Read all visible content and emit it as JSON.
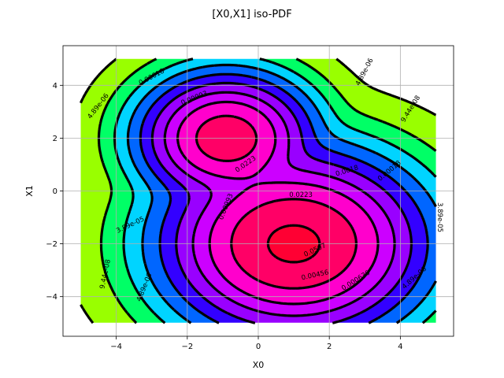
{
  "chart_data": {
    "type": "contour",
    "title": "[X0,X1] iso-PDF",
    "xlabel": "X0",
    "ylabel": "X1",
    "xlim": [
      -5.5,
      5.5
    ],
    "ylim": [
      -5.5,
      5.5
    ],
    "data_extent": {
      "x": [
        -5,
        5
      ],
      "y": [
        -5,
        5
      ]
    },
    "xticks": [
      -4,
      -2,
      0,
      2,
      4
    ],
    "yticks": [
      -4,
      -2,
      0,
      2,
      4
    ],
    "xtick_labels": [
      "−4",
      "−2",
      "0",
      "2",
      "4"
    ],
    "ytick_labels": [
      "−4",
      "−2",
      "0",
      "2",
      "4"
    ],
    "grid": true,
    "mixture": [
      {
        "mean": [
          -0.9,
          2.0
        ],
        "sigma": [
          0.85,
          0.85
        ],
        "weight": 1.0
      },
      {
        "mean": [
          1.0,
          -2.0
        ],
        "sigma": [
          1.25,
          1.2
        ],
        "weight": 1.65
      }
    ],
    "levels": [
      9.44e-08,
      3.89e-05,
      4.89e-06,
      0.00018,
      0.000636,
      0.0018,
      0.00456,
      0.00993,
      0.0223,
      0.0507
    ],
    "fill_colors": [
      "#ffffff",
      "#99ff00",
      "#00ff66",
      "#00d4ff",
      "#0066ff",
      "#3300ff",
      "#9900ff",
      "#cc00ff",
      "#ff00cc",
      "#ff0066",
      "#ff0033"
    ],
    "contour_line_color": "#000000",
    "contour_line_style": "dash-dot",
    "contour_labels": [
      {
        "text": "4.89e-06",
        "x": -4.5,
        "y": 3.2,
        "angle": -52
      },
      {
        "text": "0.00018",
        "x": -3.0,
        "y": 4.3,
        "angle": -28
      },
      {
        "text": "0.00993",
        "x": -1.8,
        "y": 3.5,
        "angle": -22
      },
      {
        "text": "0.0223",
        "x": -0.35,
        "y": 1.0,
        "angle": -35
      },
      {
        "text": "4.89e-06",
        "x": 3.0,
        "y": 4.5,
        "angle": -62
      },
      {
        "text": "9.44e-08",
        "x": 4.3,
        "y": 3.1,
        "angle": -58
      },
      {
        "text": "0.0018",
        "x": 2.5,
        "y": 0.75,
        "angle": -17
      },
      {
        "text": "0.00018",
        "x": 3.7,
        "y": 0.75,
        "angle": -40
      },
      {
        "text": "0.0223",
        "x": 1.2,
        "y": -0.17,
        "angle": 0
      },
      {
        "text": "3.89e-05",
        "x": 5.1,
        "y": -1.0,
        "angle": 90
      },
      {
        "text": "3.89e-05",
        "x": -3.6,
        "y": -1.3,
        "angle": -25
      },
      {
        "text": "0.00993",
        "x": -0.9,
        "y": -0.6,
        "angle": -68
      },
      {
        "text": "0.0507",
        "x": 1.6,
        "y": -2.25,
        "angle": -25
      },
      {
        "text": "9.44e-08",
        "x": -4.3,
        "y": -3.15,
        "angle": -78
      },
      {
        "text": "4.89e-06",
        "x": -3.2,
        "y": -3.65,
        "angle": -68
      },
      {
        "text": "0.00456",
        "x": 1.6,
        "y": -3.2,
        "angle": -12
      },
      {
        "text": "0.000636",
        "x": 2.75,
        "y": -3.4,
        "angle": -32
      },
      {
        "text": "4.89e-06",
        "x": 4.4,
        "y": -3.3,
        "angle": -42
      }
    ]
  }
}
